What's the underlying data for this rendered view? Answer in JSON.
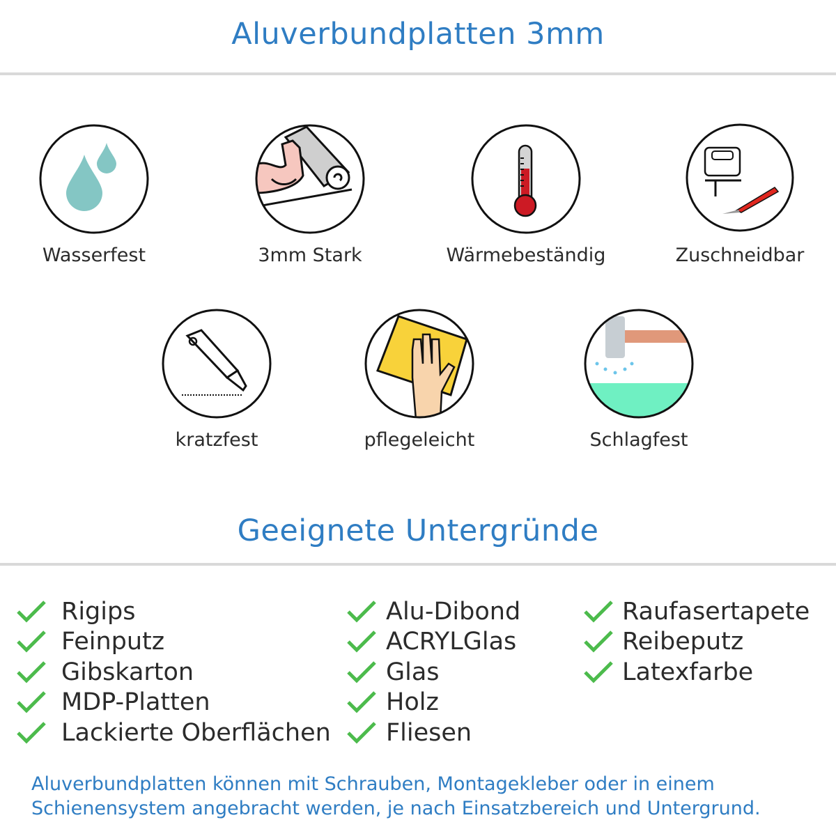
{
  "header": {
    "title": "Aluverbundplatten 3mm"
  },
  "features": [
    {
      "label": "Wasserfest",
      "icon": "water-drops-icon"
    },
    {
      "label": "3mm Stark",
      "icon": "strong-arm-icon"
    },
    {
      "label": "Wärmebeständig",
      "icon": "thermometer-icon"
    },
    {
      "label": "Zuschneidbar",
      "icon": "jigsaw-cutter-icon"
    },
    {
      "label": "kratzfest",
      "icon": "box-cutter-icon"
    },
    {
      "label": "pflegeleicht",
      "icon": "hand-sponge-icon"
    },
    {
      "label": "Schlagfest",
      "icon": "hammer-impact-icon"
    }
  ],
  "substrates": {
    "title": "Geeignete Untergründe",
    "columns": [
      [
        "Rigips",
        "Feinputz",
        "Gibskarton",
        "MDP-Platten",
        "Lackierte Oberflächen"
      ],
      [
        "Alu-Dibond",
        "ACRYLGlas",
        "Glas",
        "Holz",
        "Fliesen"
      ],
      [
        "Raufasertapete",
        "Reibeputz",
        "Latexfarbe"
      ]
    ],
    "check_color": "#4cbb4c"
  },
  "footer": {
    "line1": "Aluverbundplatten können mit Schrauben, Montagekleber oder in einem",
    "line2": "Schienensystem angebracht werden, je nach Einsatzbereich und Untergrund."
  },
  "colors": {
    "accent": "#2f7dc3",
    "divider": "#d9d9d9"
  }
}
